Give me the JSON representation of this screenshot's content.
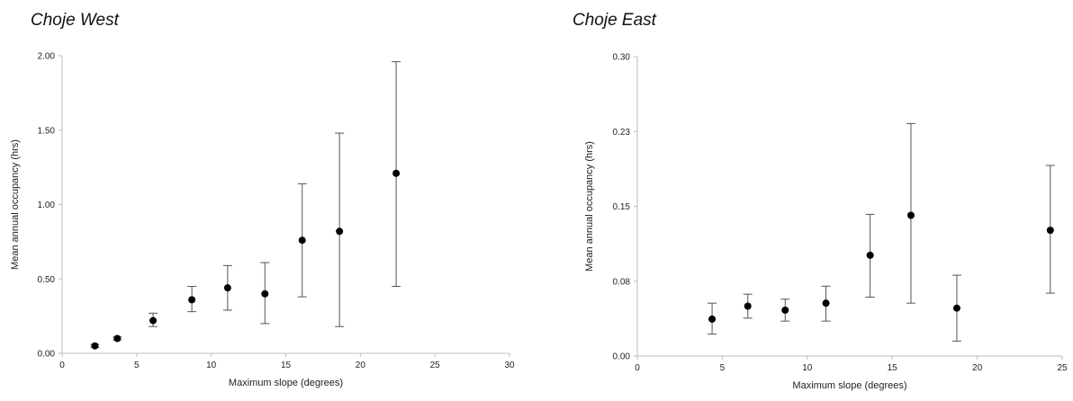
{
  "chart_data": [
    {
      "type": "scatter",
      "title": "Choje West",
      "xlabel": "Maximum slope (degrees)",
      "ylabel": "Mean annual occupancy (hrs)",
      "xlim": [
        0,
        30
      ],
      "ylim": [
        0,
        2
      ],
      "xticks": [
        0,
        5,
        10,
        15,
        20,
        25,
        30
      ],
      "yticks": [
        0,
        0.5,
        1,
        1.5,
        2
      ],
      "yticklabels": [
        "0.00",
        "0.50",
        "1.00",
        "1.50",
        "2.00"
      ],
      "xticklabels": [
        "0",
        "5",
        "10",
        "15",
        "20",
        "25",
        "30"
      ],
      "grid": false,
      "points": [
        {
          "x": 2.2,
          "y": 0.05,
          "low": 0.04,
          "high": 0.06
        },
        {
          "x": 3.7,
          "y": 0.1,
          "low": 0.09,
          "high": 0.11
        },
        {
          "x": 6.1,
          "y": 0.22,
          "low": 0.18,
          "high": 0.27
        },
        {
          "x": 8.7,
          "y": 0.36,
          "low": 0.28,
          "high": 0.45
        },
        {
          "x": 11.1,
          "y": 0.44,
          "low": 0.29,
          "high": 0.59
        },
        {
          "x": 13.6,
          "y": 0.4,
          "low": 0.2,
          "high": 0.61
        },
        {
          "x": 16.1,
          "y": 0.76,
          "low": 0.38,
          "high": 1.14
        },
        {
          "x": 18.6,
          "y": 0.82,
          "low": 0.18,
          "high": 1.48
        },
        {
          "x": 22.4,
          "y": 1.21,
          "low": 0.45,
          "high": 1.96
        }
      ]
    },
    {
      "type": "scatter",
      "title": "Choje East",
      "xlabel": "Maximum slope (degrees)",
      "ylabel": "Mean annual occupancy (hrs)",
      "xlim": [
        0,
        25
      ],
      "ylim": [
        0,
        0.3
      ],
      "xticks": [
        0,
        5,
        10,
        15,
        20,
        25
      ],
      "yticks": [
        0,
        0.075,
        0.15,
        0.225,
        0.3
      ],
      "yticklabels": [
        "0.00",
        "0.08",
        "0.15",
        "0.23",
        "0.30"
      ],
      "xticklabels": [
        "0",
        "5",
        "10",
        "15",
        "20",
        "25"
      ],
      "grid": false,
      "points": [
        {
          "x": 4.4,
          "y": 0.037,
          "low": 0.022,
          "high": 0.053
        },
        {
          "x": 6.5,
          "y": 0.05,
          "low": 0.038,
          "high": 0.062
        },
        {
          "x": 8.7,
          "y": 0.046,
          "low": 0.035,
          "high": 0.057
        },
        {
          "x": 11.1,
          "y": 0.053,
          "low": 0.035,
          "high": 0.07
        },
        {
          "x": 13.7,
          "y": 0.101,
          "low": 0.059,
          "high": 0.142
        },
        {
          "x": 16.1,
          "y": 0.141,
          "low": 0.053,
          "high": 0.233
        },
        {
          "x": 18.8,
          "y": 0.048,
          "low": 0.015,
          "high": 0.081
        },
        {
          "x": 24.3,
          "y": 0.126,
          "low": 0.063,
          "high": 0.191
        }
      ]
    }
  ]
}
